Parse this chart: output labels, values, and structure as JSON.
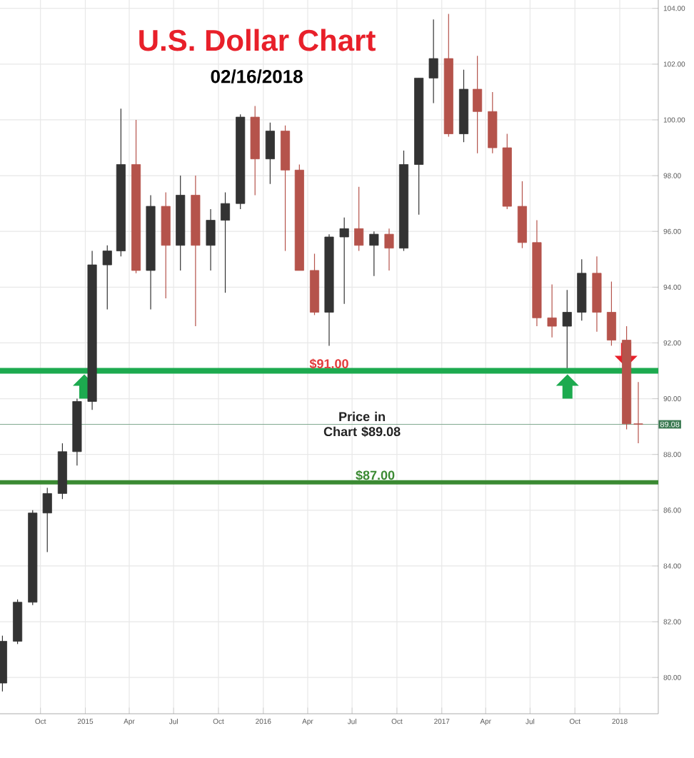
{
  "chart_data": {
    "type": "candlestick",
    "title": "U.S. Dollar Chart",
    "subtitle": "02/16/2018",
    "x": [
      "2014-07-15",
      "2014-08-15",
      "2014-09-15",
      "2014-10-15",
      "2014-11-15",
      "2014-12-15",
      "2015-01-15",
      "2015-02-15",
      "2015-03-15",
      "2015-04-15",
      "2015-05-15",
      "2015-06-15",
      "2015-07-15",
      "2015-08-15",
      "2015-09-15",
      "2015-10-15",
      "2015-11-15",
      "2015-12-15",
      "2016-01-15",
      "2016-02-15",
      "2016-03-15",
      "2016-04-15",
      "2016-05-15",
      "2016-06-15",
      "2016-07-15",
      "2016-08-15",
      "2016-09-15",
      "2016-10-15",
      "2016-11-15",
      "2016-12-15",
      "2017-01-15",
      "2017-02-15",
      "2017-03-15",
      "2017-04-15",
      "2017-05-15",
      "2017-06-15",
      "2017-07-15",
      "2017-08-15",
      "2017-09-15",
      "2017-10-15",
      "2017-11-15",
      "2017-12-15",
      "2018-01-15",
      "2018-02-08"
    ],
    "ohlc": [
      [
        79.8,
        81.5,
        79.5,
        81.3
      ],
      [
        81.3,
        82.8,
        81.2,
        82.7
      ],
      [
        82.7,
        86.0,
        82.6,
        85.9
      ],
      [
        85.9,
        86.8,
        84.5,
        86.6
      ],
      [
        86.6,
        88.4,
        86.4,
        88.1
      ],
      [
        88.1,
        90.0,
        87.6,
        89.9
      ],
      [
        89.9,
        95.3,
        89.6,
        94.8
      ],
      [
        94.8,
        95.5,
        93.2,
        95.3
      ],
      [
        95.3,
        100.4,
        95.1,
        98.4
      ],
      [
        98.4,
        100.0,
        94.5,
        94.6
      ],
      [
        94.6,
        97.3,
        93.2,
        96.9
      ],
      [
        96.9,
        97.4,
        93.6,
        95.5
      ],
      [
        95.5,
        98.0,
        94.6,
        97.3
      ],
      [
        97.3,
        98.0,
        92.6,
        95.5
      ],
      [
        95.5,
        96.8,
        94.6,
        96.4
      ],
      [
        96.4,
        97.4,
        93.8,
        97.0
      ],
      [
        97.0,
        100.2,
        96.8,
        100.1
      ],
      [
        100.1,
        100.5,
        97.3,
        98.6
      ],
      [
        98.6,
        99.9,
        97.7,
        99.6
      ],
      [
        99.6,
        99.8,
        95.3,
        98.2
      ],
      [
        98.2,
        98.4,
        94.6,
        94.6
      ],
      [
        94.6,
        95.2,
        93.0,
        93.1
      ],
      [
        93.1,
        95.9,
        91.9,
        95.8
      ],
      [
        95.8,
        96.5,
        93.4,
        96.1
      ],
      [
        96.1,
        97.6,
        95.3,
        95.5
      ],
      [
        95.5,
        96.0,
        94.4,
        95.9
      ],
      [
        95.9,
        96.1,
        94.6,
        95.4
      ],
      [
        95.4,
        98.9,
        95.3,
        98.4
      ],
      [
        98.4,
        101.5,
        96.6,
        101.5
      ],
      [
        101.5,
        103.6,
        100.6,
        102.2
      ],
      [
        102.2,
        103.8,
        99.4,
        99.5
      ],
      [
        99.5,
        101.8,
        99.2,
        101.1
      ],
      [
        101.1,
        102.3,
        98.8,
        100.3
      ],
      [
        100.3,
        101.0,
        98.8,
        99.0
      ],
      [
        99.0,
        99.5,
        96.8,
        96.9
      ],
      [
        96.9,
        97.8,
        95.4,
        95.6
      ],
      [
        95.6,
        96.4,
        92.6,
        92.9
      ],
      [
        92.9,
        94.1,
        92.2,
        92.6
      ],
      [
        92.6,
        93.9,
        91.1,
        93.1
      ],
      [
        93.1,
        95.0,
        92.8,
        94.5
      ],
      [
        94.5,
        95.1,
        92.4,
        93.1
      ],
      [
        93.1,
        94.2,
        91.9,
        92.1
      ],
      [
        92.1,
        92.6,
        88.9,
        89.1
      ],
      [
        89.1,
        90.6,
        88.4,
        89.08
      ]
    ],
    "colors": [
      "#333333",
      "#333333",
      "#333333",
      "#333333",
      "#333333",
      "#333333",
      "#333333",
      "#333333",
      "#333333",
      "#b5534b",
      "#333333",
      "#b5534b",
      "#333333",
      "#b5534b",
      "#333333",
      "#333333",
      "#333333",
      "#b5534b",
      "#333333",
      "#b5534b",
      "#b5534b",
      "#b5534b",
      "#333333",
      "#333333",
      "#b5534b",
      "#333333",
      "#b5534b",
      "#333333",
      "#333333",
      "#333333",
      "#b5534b",
      "#333333",
      "#b5534b",
      "#b5534b",
      "#b5534b",
      "#b5534b",
      "#b5534b",
      "#b5534b",
      "#333333",
      "#333333",
      "#b5534b",
      "#b5534b",
      "#b5534b",
      "#b5534b"
    ],
    "xlim": [
      "2014-07-10",
      "2018-03-21"
    ],
    "xticks": [
      {
        "value": "2014-10-01",
        "label": "Oct"
      },
      {
        "value": "2015-01-01",
        "label": "2015"
      },
      {
        "value": "2015-04-01",
        "label": "Apr"
      },
      {
        "value": "2015-07-01",
        "label": "Jul"
      },
      {
        "value": "2015-10-01",
        "label": "Oct"
      },
      {
        "value": "2016-01-01",
        "label": "2016"
      },
      {
        "value": "2016-04-01",
        "label": "Apr"
      },
      {
        "value": "2016-07-01",
        "label": "Jul"
      },
      {
        "value": "2016-10-01",
        "label": "Oct"
      },
      {
        "value": "2017-01-01",
        "label": "2017"
      },
      {
        "value": "2017-04-01",
        "label": "Apr"
      },
      {
        "value": "2017-07-01",
        "label": "Jul"
      },
      {
        "value": "2017-10-01",
        "label": "Oct"
      },
      {
        "value": "2018-01-01",
        "label": "2018"
      }
    ],
    "ylim": [
      78.7,
      104.3
    ],
    "yticks": [
      {
        "value": 80,
        "label": "80.00"
      },
      {
        "value": 82,
        "label": "82.00"
      },
      {
        "value": 84,
        "label": "84.00"
      },
      {
        "value": 86,
        "label": "86.00"
      },
      {
        "value": 88,
        "label": "88.00"
      },
      {
        "value": 90,
        "label": "90.00"
      },
      {
        "value": 92,
        "label": "92.00"
      },
      {
        "value": 94,
        "label": "94.00"
      },
      {
        "value": 96,
        "label": "96.00"
      },
      {
        "value": 98,
        "label": "98.00"
      },
      {
        "value": 100,
        "label": "100.00"
      },
      {
        "value": 102,
        "label": "102.00"
      },
      {
        "value": 104,
        "label": "104.00"
      }
    ],
    "ref_lines": [
      {
        "axis": "y",
        "value": 91.0,
        "label": "$91.00",
        "color": "#1daa4f"
      },
      {
        "axis": "y",
        "value": 87.0,
        "label": "$87.00",
        "color": "#3b8a33"
      },
      {
        "axis": "y",
        "value": 89.08,
        "label": "Price in Chart $89.08",
        "color": "#7fa890"
      }
    ],
    "annotations": [
      {
        "text": "89.08",
        "y": 89.08
      }
    ],
    "grid": true
  }
}
